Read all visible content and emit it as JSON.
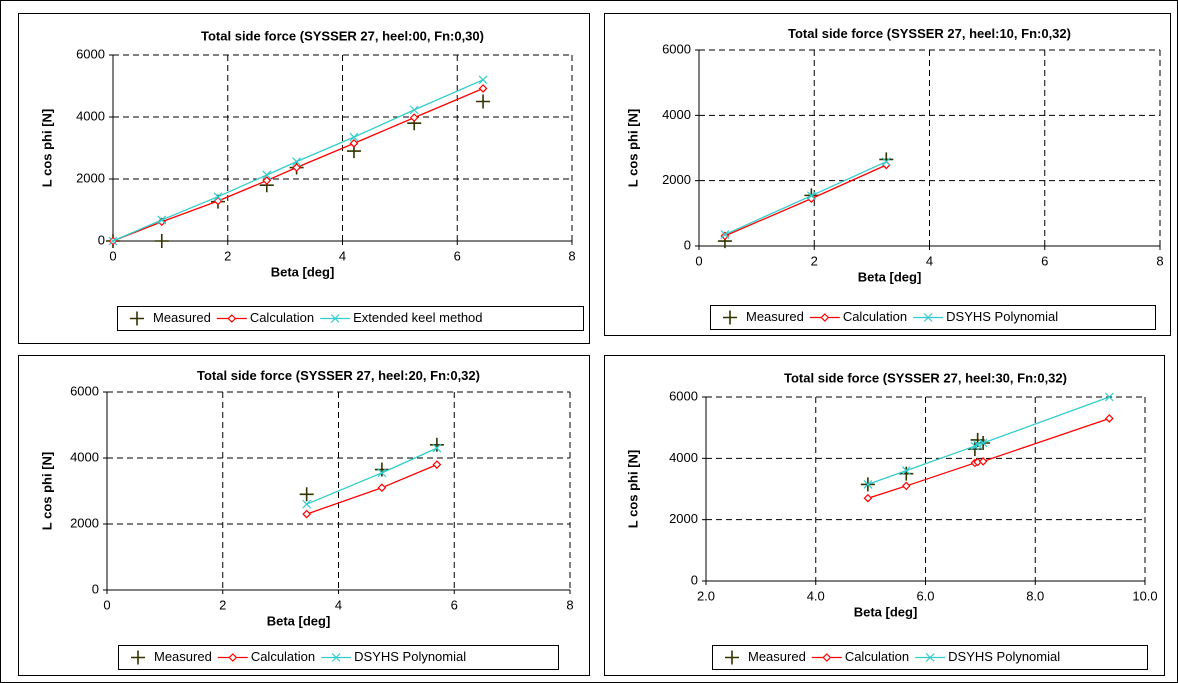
{
  "chart_data": [
    {
      "type": "line",
      "title": "Total side force (SYSSER 27, heel:00, Fn:0,30)",
      "x_label": "Beta [deg]",
      "y_label": "L cos phi [N]",
      "xlim": [
        0,
        8
      ],
      "xticks": [
        0,
        2,
        4,
        6,
        8
      ],
      "ylim": [
        0,
        6000
      ],
      "yticks": [
        0,
        2000,
        4000,
        6000
      ],
      "grid": true,
      "series": [
        {
          "name": "Measured",
          "color": "#333300",
          "marker": "plus",
          "line": false,
          "x": [
            0,
            0.85,
            1.83,
            2.68,
            3.2,
            4.2,
            5.25,
            6.45
          ],
          "values": [
            0,
            0,
            1270,
            1800,
            2370,
            2900,
            3800,
            4500
          ]
        },
        {
          "name": "Calculation",
          "color": "#ff0000",
          "marker": "diamond",
          "line": true,
          "x": [
            0,
            0.85,
            1.83,
            2.68,
            3.2,
            4.2,
            5.25,
            6.45
          ],
          "values": [
            0,
            620,
            1290,
            1950,
            2370,
            3150,
            3980,
            4920
          ]
        },
        {
          "name": "Extended keel method",
          "color": "#33cccc",
          "marker": "x",
          "line": true,
          "x": [
            0,
            0.85,
            1.83,
            2.68,
            3.2,
            4.2,
            5.25,
            6.45
          ],
          "values": [
            0,
            680,
            1430,
            2130,
            2560,
            3350,
            4230,
            5200
          ]
        }
      ]
    },
    {
      "type": "line",
      "title": "Total side force (SYSSER 27, heel:10, Fn:0,32)",
      "x_label": "Beta [deg]",
      "y_label": "L cos phi [N]",
      "xlim": [
        0,
        8
      ],
      "xticks": [
        0,
        2,
        4,
        6,
        8
      ],
      "ylim": [
        0,
        6000
      ],
      "yticks": [
        0,
        2000,
        4000,
        6000
      ],
      "grid": true,
      "series": [
        {
          "name": "Measured",
          "color": "#333300",
          "marker": "plus",
          "line": false,
          "x": [
            0.45,
            1.95,
            3.25
          ],
          "values": [
            150,
            1550,
            2650
          ]
        },
        {
          "name": "Calculation",
          "color": "#ff0000",
          "marker": "diamond",
          "line": true,
          "x": [
            0.45,
            1.95,
            3.25
          ],
          "values": [
            310,
            1450,
            2480
          ]
        },
        {
          "name": "DSYHS Polynomial",
          "color": "#33cccc",
          "marker": "x",
          "line": true,
          "x": [
            0.45,
            1.95,
            3.25
          ],
          "values": [
            350,
            1540,
            2580
          ]
        }
      ]
    },
    {
      "type": "line",
      "title": "Total side force (SYSSER 27, heel:20, Fn:0,32)",
      "x_label": "Beta [deg]",
      "y_label": "L cos phi [N]",
      "xlim": [
        0,
        8
      ],
      "xticks": [
        0,
        2,
        4,
        6,
        8
      ],
      "ylim": [
        0,
        6000
      ],
      "yticks": [
        0,
        2000,
        4000,
        6000
      ],
      "grid": true,
      "series": [
        {
          "name": "Measured",
          "color": "#333300",
          "marker": "plus",
          "line": false,
          "x": [
            3.45,
            4.75,
            5.7
          ],
          "values": [
            2900,
            3650,
            4400
          ]
        },
        {
          "name": "Calculation",
          "color": "#ff0000",
          "marker": "diamond",
          "line": true,
          "x": [
            3.45,
            4.75,
            5.7
          ],
          "values": [
            2300,
            3100,
            3800
          ]
        },
        {
          "name": "DSYHS Polynomial",
          "color": "#33cccc",
          "marker": "x",
          "line": true,
          "x": [
            3.45,
            4.75,
            5.7
          ],
          "values": [
            2600,
            3550,
            4300
          ]
        }
      ]
    },
    {
      "type": "line",
      "title": "Total side force (SYSSER 27, heel:30, Fn:0,32)",
      "x_label": "Beta [deg]",
      "y_label": "L cos phi [N]",
      "xlim": [
        2,
        10
      ],
      "xticks": [
        {
          "value": 2,
          "label": "2.0"
        },
        {
          "value": 4,
          "label": "4.0"
        },
        {
          "value": 6,
          "label": "6.0"
        },
        {
          "value": 8,
          "label": "8.0"
        },
        {
          "value": 10,
          "label": "10.0"
        }
      ],
      "ylim": [
        0,
        6000
      ],
      "yticks": [
        0,
        2000,
        4000,
        6000
      ],
      "grid": true,
      "series": [
        {
          "name": "Measured",
          "color": "#333300",
          "marker": "plus",
          "line": false,
          "x": [
            4.95,
            5.65,
            6.9,
            6.95,
            7.05
          ],
          "values": [
            3150,
            3500,
            4300,
            4600,
            4500
          ]
        },
        {
          "name": "Calculation",
          "color": "#ff0000",
          "marker": "diamond",
          "line": true,
          "x": [
            4.95,
            5.65,
            6.9,
            6.95,
            7.05,
            9.35
          ],
          "values": [
            2700,
            3100,
            3850,
            3880,
            3900,
            5300
          ]
        },
        {
          "name": "DSYHS Polynomial",
          "color": "#33cccc",
          "marker": "x",
          "line": true,
          "x": [
            4.95,
            5.65,
            6.9,
            6.95,
            7.05,
            9.35
          ],
          "values": [
            3150,
            3600,
            4400,
            4450,
            4500,
            6000
          ]
        }
      ]
    }
  ]
}
